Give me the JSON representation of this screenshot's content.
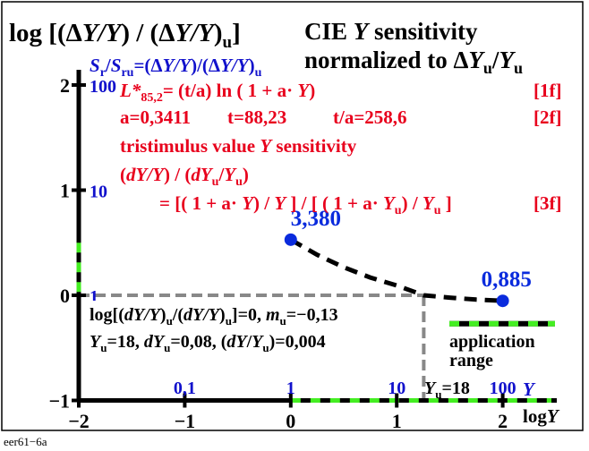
{
  "chart_data": {
    "type": "line",
    "title": "CIE Y sensitivity normalized to ΔYu/Yu",
    "ylabel_left": "log [(ΔY/Y) / (ΔY/Y)u]",
    "ylabel_right": "Sr/Sru=(ΔY/Y)/(ΔY/Y)u",
    "xlabel": "log Y",
    "xlabel_top": "Y",
    "xlim": [
      -2,
      2.5
    ],
    "ylim": [
      -1,
      2.3
    ],
    "x_ticks": [
      -2,
      -1,
      0,
      1,
      2
    ],
    "x_tick_labels": [
      "−2",
      "−1",
      "0",
      "1",
      "2"
    ],
    "y_ticks": [
      -1,
      0,
      1,
      2
    ],
    "y_tick_labels": [
      "−1",
      "0",
      "1",
      "2"
    ],
    "y_ticks_right": [
      0,
      1,
      2
    ],
    "y_tick_labels_right": [
      "1",
      "10",
      "100"
    ],
    "x_top_ticks": [
      -1,
      0,
      1,
      2
    ],
    "x_top_tick_labels": [
      "0,1",
      "1",
      "10",
      "100"
    ],
    "series": [
      {
        "values_x": [
          0,
          0.25,
          0.5,
          0.75,
          1.0,
          1.255,
          1.5,
          1.75,
          2.0
        ],
        "values_y": [
          0.529,
          0.385,
          0.266,
          0.169,
          0.094,
          0.0,
          -0.022,
          -0.041,
          -0.053
        ],
        "style": "dashed",
        "color": "#000000"
      }
    ],
    "points": [
      {
        "x": 0,
        "y": 0.529,
        "label": "3,380"
      },
      {
        "x": 2,
        "y": -0.053,
        "label": "0,885"
      }
    ],
    "reference_lines": {
      "y0_dashed_x_range": [
        -2,
        1.255
      ],
      "xu_vertical_dashed_x": 1.255,
      "xu_label": "Yu=18"
    },
    "application_range": {
      "x_range": [
        0,
        2.5
      ],
      "marker_y": -0.27,
      "label_line1": "application",
      "label_line2": "range"
    }
  },
  "text": {
    "ylabel_left": "log [(ΔY/Y) / (ΔY/Y)u]",
    "ylabel_right": "Sr/Sru=(ΔY/Y)/(ΔY/Y)u",
    "title_line1": "CIE Y sensitivity",
    "title_line2": "normalized to ΔYu/Yu",
    "eq1": "L*85,2= (t/a) ln ( 1 + a· Y)",
    "eq1_tag": "[1f]",
    "eq2_a": "a=0,3411",
    "eq2_t": "t=88,23",
    "eq2_ta": "t/a=258,6",
    "eq2_tag": "[2f]",
    "eq3a": "tristimulus value Y sensitivity",
    "eq3b": "(dY/Y) / (dYu/Yu)",
    "eq3c": "= [( 1 + a· Y) / Y ] / [ ( 1 + a· Yu) / Yu ]",
    "eq3_tag": "[3f]",
    "note1": "log[(dY/Y)u/(dY/Y)u]=0, mu=−0,13",
    "note2": "Yu=18, dYu=0,08, (dY/Yu)=0,004",
    "footer": "eer61−6a"
  },
  "colors": {
    "axis": "#000000",
    "red_text": "#e8001c",
    "blue_text": "#1111cc",
    "green_dash": "#44ee22",
    "gray_dash": "#888888",
    "marker": "#0a2bdd"
  }
}
